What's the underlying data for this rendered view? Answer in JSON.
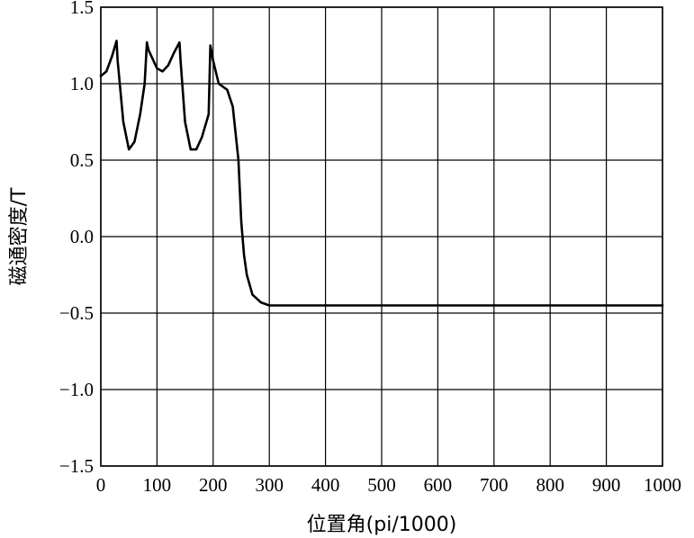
{
  "chart_data": {
    "type": "line",
    "xlabel": "位置角(pi/1000)",
    "ylabel": "磁通密度/T",
    "xlim": [
      0,
      1000
    ],
    "ylim": [
      -1.5,
      1.5
    ],
    "grid": true,
    "x_ticks": [
      0,
      100,
      200,
      300,
      400,
      500,
      600,
      700,
      800,
      900,
      1000
    ],
    "x_tick_labels": [
      "0",
      "100",
      "200",
      "300",
      "400",
      "500",
      "600",
      "700",
      "800",
      "900",
      "1000"
    ],
    "y_ticks": [
      1.5,
      1.0,
      0.5,
      0.0,
      -0.5,
      -1.0,
      -1.5
    ],
    "y_tick_labels": [
      "1.5",
      "1.0",
      "0.5",
      "0.0",
      "−0.5",
      "−1.0",
      "−1.5"
    ],
    "series": [
      {
        "x": [
          0,
          10,
          20,
          28,
          30,
          40,
          50,
          60,
          70,
          78,
          82,
          85,
          100,
          110,
          120,
          130,
          140,
          142,
          150,
          160,
          170,
          180,
          192,
          195,
          200,
          210,
          225,
          235,
          245,
          250,
          255,
          260,
          270,
          285,
          300,
          350,
          450,
          550,
          650,
          700,
          710,
          720,
          730,
          740,
          745,
          750,
          755,
          760,
          775,
          790,
          800,
          805,
          808,
          812,
          820,
          830,
          840,
          850,
          858,
          870,
          880,
          890,
          900,
          915,
          918,
          925,
          940,
          950,
          960,
          968,
          975,
          990,
          1000
        ],
        "y": [
          1.05,
          1.08,
          1.18,
          1.28,
          1.15,
          0.75,
          0.57,
          0.62,
          0.8,
          1.0,
          1.27,
          1.22,
          1.1,
          1.08,
          1.12,
          1.2,
          1.27,
          1.15,
          0.75,
          0.57,
          0.57,
          0.65,
          0.8,
          1.25,
          1.15,
          1.0,
          0.96,
          0.85,
          0.5,
          0.1,
          -0.12,
          -0.25,
          -0.38,
          -0.43,
          -0.45,
          -0.45,
          -0.45,
          -0.45,
          -0.45,
          -0.45,
          -0.45,
          -0.45,
          -0.45,
          -0.45,
          -0.45,
          -0.45,
          -0.45,
          -0.45,
          -0.45,
          -0.45,
          -0.45,
          -0.45,
          -0.45,
          -0.45,
          -0.45,
          -0.45,
          -0.45,
          -0.45,
          -0.45,
          -0.45,
          -0.45,
          -0.45,
          -0.45,
          -0.45,
          -0.45,
          -0.45,
          -0.45,
          -0.45,
          -0.45,
          -0.45,
          -0.45,
          -0.45,
          -0.45
        ]
      }
    ]
  }
}
